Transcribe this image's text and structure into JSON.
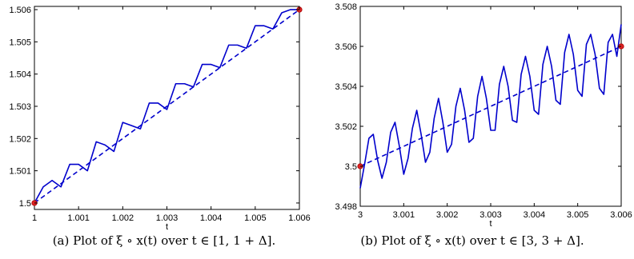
{
  "captions": [
    "(a) Plot of ξ ∘ x(t) over t ∈ [1, 1 + Δ].",
    "(b) Plot of ξ ∘ x(t) over t ∈ [3, 3 + Δ]."
  ],
  "chart_data": [
    {
      "type": "line",
      "title": "",
      "xlabel": "t",
      "ylabel": "",
      "xlim": [
        1,
        1.006
      ],
      "ylim": [
        1.4998,
        1.5061
      ],
      "x_ticks": [
        1,
        1.001,
        1.002,
        1.003,
        1.004,
        1.005,
        1.006
      ],
      "x_tick_labels": [
        "1",
        "1.001",
        "1.002",
        "1.003",
        "1.004",
        "1.005",
        "1.006"
      ],
      "y_ticks": [
        1.5,
        1.501,
        1.502,
        1.503,
        1.504,
        1.505,
        1.506
      ],
      "y_tick_labels": [
        "1.5",
        "1.501",
        "1.502",
        "1.503",
        "1.504",
        "1.505",
        "1.506"
      ],
      "series": [
        {
          "style": "solid",
          "color": "#0000cc",
          "x": [
            1.0,
            1.0002,
            1.0004,
            1.0006,
            1.0008,
            1.001,
            1.0012,
            1.0014,
            1.0016,
            1.0018,
            1.002,
            1.0022,
            1.0024,
            1.0026,
            1.0028,
            1.003,
            1.0032,
            1.0034,
            1.0036,
            1.0038,
            1.004,
            1.0042,
            1.0044,
            1.0046,
            1.0048,
            1.005,
            1.0052,
            1.0054,
            1.0056,
            1.0058,
            1.006
          ],
          "y": [
            1.5,
            1.5005,
            1.5007,
            1.5005,
            1.5012,
            1.5012,
            1.501,
            1.5019,
            1.5018,
            1.5016,
            1.5025,
            1.5024,
            1.5023,
            1.5031,
            1.5031,
            1.5029,
            1.5037,
            1.5037,
            1.5036,
            1.5043,
            1.5043,
            1.5042,
            1.5049,
            1.5049,
            1.5048,
            1.5055,
            1.5055,
            1.5054,
            1.5059,
            1.506,
            1.506
          ]
        },
        {
          "style": "dashed",
          "color": "#0000cc",
          "x": [
            1.0,
            1.006
          ],
          "y": [
            1.5,
            1.506
          ]
        }
      ],
      "points": [
        {
          "x": 1.0,
          "y": 1.5,
          "color": "#dd2222"
        },
        {
          "x": 1.006,
          "y": 1.506,
          "color": "#dd2222"
        }
      ]
    },
    {
      "type": "line",
      "title": "",
      "xlabel": "t",
      "ylabel": "",
      "xlim": [
        3,
        3.006
      ],
      "ylim": [
        3.498,
        3.508
      ],
      "x_ticks": [
        3,
        3.001,
        3.002,
        3.003,
        3.004,
        3.005,
        3.006
      ],
      "x_tick_labels": [
        "3",
        "3.001",
        "3.002",
        "3.003",
        "3.004",
        "3.005",
        "3.006"
      ],
      "y_ticks": [
        3.498,
        3.5,
        3.502,
        3.504,
        3.506,
        3.508
      ],
      "y_tick_labels": [
        "3.498",
        "3.5",
        "3.502",
        "3.504",
        "3.506",
        "3.508"
      ],
      "series": [
        {
          "style": "solid",
          "color": "#0000cc",
          "x": [
            3.0,
            3.0001,
            3.0002,
            3.0003,
            3.0004,
            3.0005,
            3.0006,
            3.0007,
            3.0008,
            3.0009,
            3.001,
            3.0011,
            3.0012,
            3.0013,
            3.0014,
            3.0015,
            3.0016,
            3.0017,
            3.0018,
            3.0019,
            3.002,
            3.0021,
            3.0022,
            3.0023,
            3.0024,
            3.0025,
            3.0026,
            3.0027,
            3.0028,
            3.0029,
            3.003,
            3.0031,
            3.0032,
            3.0033,
            3.0034,
            3.0035,
            3.0036,
            3.0037,
            3.0038,
            3.0039,
            3.004,
            3.0041,
            3.0042,
            3.0043,
            3.0044,
            3.0045,
            3.0046,
            3.0047,
            3.0048,
            3.0049,
            3.005,
            3.0051,
            3.0052,
            3.0053,
            3.0054,
            3.0055,
            3.0056,
            3.0057,
            3.0058,
            3.0059,
            3.006
          ],
          "y": [
            3.4989,
            3.5001,
            3.5014,
            3.5016,
            3.5003,
            3.4994,
            3.5002,
            3.5017,
            3.5022,
            3.501,
            3.4996,
            3.5004,
            3.5019,
            3.5028,
            3.5016,
            3.5002,
            3.5007,
            3.5024,
            3.5034,
            3.5022,
            3.5007,
            3.5011,
            3.503,
            3.5039,
            3.5028,
            3.5012,
            3.5014,
            3.5035,
            3.5045,
            3.5034,
            3.5018,
            3.5018,
            3.5041,
            3.505,
            3.504,
            3.5023,
            3.5022,
            3.5046,
            3.5055,
            3.5045,
            3.5028,
            3.5026,
            3.5051,
            3.506,
            3.505,
            3.5033,
            3.5031,
            3.5057,
            3.5066,
            3.5056,
            3.5038,
            3.5035,
            3.5061,
            3.5066,
            3.5056,
            3.5039,
            3.5036,
            3.5062,
            3.5066,
            3.5055,
            3.5071
          ]
        },
        {
          "style": "dashed",
          "color": "#0000cc",
          "x": [
            3.0,
            3.006
          ],
          "y": [
            3.5,
            3.506
          ]
        }
      ],
      "points": [
        {
          "x": 3.0,
          "y": 3.5,
          "color": "#dd2222"
        },
        {
          "x": 3.006,
          "y": 3.506,
          "color": "#dd2222"
        }
      ]
    }
  ]
}
